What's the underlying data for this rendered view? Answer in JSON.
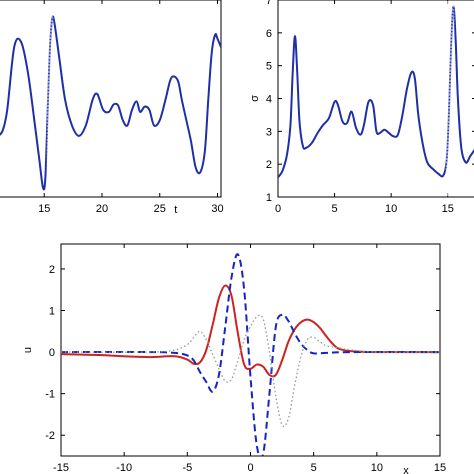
{
  "chart_data": [
    {
      "type": "line",
      "xlabel": "t",
      "ylabel": "",
      "xlim": [
        11,
        30.3
      ],
      "xticks": [
        15,
        20,
        25,
        30
      ],
      "color": "#1f2fa8",
      "series": [
        {
          "x": [
            11.0,
            11.4,
            11.8,
            12.4,
            13.0,
            13.6,
            14.2,
            14.6,
            14.9,
            15.1,
            15.3,
            15.5,
            15.7,
            15.9,
            16.3,
            16.8,
            17.4,
            18.0,
            18.6,
            19.2,
            19.6,
            20.1,
            20.6,
            21.0,
            21.4,
            21.8,
            22.2,
            22.6,
            23.0,
            23.3,
            23.7,
            24.1,
            24.5,
            25.0,
            25.5,
            25.9,
            26.2,
            26.6,
            26.9,
            27.3,
            27.7,
            28.1,
            28.5,
            28.9,
            29.2,
            29.5,
            29.8,
            30.0,
            30.3
          ],
          "y": [
            0.45,
            0.5,
            0.7,
            1.3,
            1.35,
            1.05,
            0.55,
            0.2,
            -0.05,
            0.05,
            0.7,
            1.3,
            1.58,
            1.52,
            1.2,
            0.8,
            0.55,
            0.45,
            0.55,
            0.8,
            0.85,
            0.7,
            0.68,
            0.75,
            0.74,
            0.6,
            0.55,
            0.7,
            0.78,
            0.68,
            0.73,
            0.7,
            0.55,
            0.6,
            0.8,
            0.98,
            1.02,
            0.97,
            0.8,
            0.6,
            0.4,
            0.15,
            0.1,
            0.3,
            0.8,
            1.25,
            1.42,
            1.38,
            1.3
          ],
          "dotted_range": [
            15.3,
            15.7
          ]
        }
      ]
    },
    {
      "type": "line",
      "xlabel": "",
      "ylabel": "σ",
      "xlim": [
        0,
        17.5
      ],
      "ylim": [
        1,
        7
      ],
      "xticks": [
        0,
        5,
        10,
        15
      ],
      "yticks": [
        1,
        2,
        3,
        4,
        5,
        6,
        7
      ],
      "color": "#1f2fa8",
      "series": [
        {
          "x": [
            0,
            0.4,
            0.8,
            1.1,
            1.3,
            1.5,
            1.7,
            1.9,
            2.2,
            2.5,
            3.0,
            3.5,
            4.0,
            4.5,
            5.0,
            5.3,
            5.7,
            6.1,
            6.5,
            6.9,
            7.3,
            7.6,
            8.0,
            8.4,
            8.7,
            9.0,
            9.4,
            9.8,
            10.2,
            10.6,
            11.0,
            11.4,
            11.8,
            12.1,
            12.4,
            12.8,
            13.2,
            13.7,
            14.2,
            14.6,
            14.9,
            15.1,
            15.3,
            15.5,
            15.7,
            15.9,
            16.2,
            16.6,
            17.0,
            17.5
          ],
          "y": [
            1.6,
            1.8,
            2.3,
            3.2,
            4.8,
            5.9,
            4.8,
            3.3,
            2.55,
            2.5,
            2.65,
            2.95,
            3.2,
            3.4,
            3.9,
            3.8,
            3.3,
            3.25,
            3.6,
            3.1,
            2.9,
            3.2,
            3.9,
            3.8,
            3.0,
            2.95,
            3.05,
            2.95,
            2.85,
            2.9,
            3.5,
            4.3,
            4.8,
            4.6,
            3.5,
            2.6,
            2.05,
            1.85,
            1.7,
            1.65,
            2.1,
            3.5,
            5.6,
            6.8,
            5.8,
            4.0,
            2.5,
            2.05,
            2.25,
            2.5
          ],
          "dotted_range": [
            14.9,
            15.5
          ]
        }
      ]
    },
    {
      "type": "line",
      "xlabel": "x",
      "ylabel": "u",
      "xlim": [
        -15,
        15
      ],
      "ylim": [
        -2.5,
        2.6
      ],
      "xticks": [
        -15,
        -10,
        -5,
        0,
        5,
        10,
        15
      ],
      "yticks": [
        -2,
        -1,
        0,
        1,
        2
      ],
      "series": [
        {
          "style": "solid",
          "color": "#cc2222",
          "x": [
            -15,
            -12,
            -10,
            -8,
            -6,
            -5,
            -4.5,
            -4,
            -3.5,
            -3,
            -2.5,
            -2,
            -1.5,
            -1,
            -0.5,
            0,
            0.5,
            1,
            1.5,
            2,
            2.5,
            3,
            3.5,
            4,
            4.5,
            5,
            5.5,
            6,
            6.5,
            7,
            8,
            10,
            15
          ],
          "y": [
            -0.05,
            -0.07,
            -0.1,
            -0.12,
            -0.1,
            -0.18,
            -0.28,
            -0.25,
            0.05,
            0.65,
            1.3,
            1.6,
            1.35,
            0.45,
            -0.3,
            -0.4,
            -0.3,
            -0.35,
            -0.55,
            -0.55,
            -0.2,
            0.25,
            0.55,
            0.72,
            0.78,
            0.72,
            0.58,
            0.38,
            0.2,
            0.08,
            0.02,
            0.0,
            0.0
          ]
        },
        {
          "style": "dashed",
          "color": "#1525c0",
          "x": [
            -15,
            -8,
            -6,
            -5,
            -4.5,
            -4,
            -3.5,
            -3,
            -2.5,
            -2,
            -1.5,
            -1,
            -0.5,
            0,
            0.5,
            1,
            1.5,
            2,
            2.5,
            3,
            3.5,
            4,
            4.5,
            5,
            6,
            8,
            15
          ],
          "y": [
            0.0,
            0.0,
            -0.02,
            -0.08,
            -0.2,
            -0.48,
            -0.72,
            -0.95,
            -0.55,
            0.6,
            1.8,
            2.35,
            1.5,
            -0.6,
            -2.25,
            -2.45,
            -1.0,
            0.6,
            0.9,
            0.75,
            0.45,
            0.2,
            0.05,
            -0.03,
            -0.02,
            0.0,
            0.0
          ]
        },
        {
          "style": "dotted",
          "color": "#8aa08a",
          "x": [
            -15,
            -8,
            -6,
            -5,
            -4.5,
            -4,
            -3.5,
            -3,
            -2.5,
            -2,
            -1.5,
            -1,
            -0.5,
            0,
            0.5,
            1,
            1.5,
            2,
            2.5,
            3,
            3.5,
            4,
            4.5,
            5,
            5.5,
            6,
            7,
            8,
            10,
            15
          ],
          "y": [
            0.0,
            0.0,
            0.05,
            0.18,
            0.35,
            0.5,
            0.3,
            -0.05,
            -0.4,
            -0.7,
            -0.65,
            -0.2,
            0.3,
            0.62,
            0.85,
            0.8,
            0.0,
            -1.05,
            -1.75,
            -1.6,
            -0.8,
            -0.1,
            0.3,
            0.35,
            0.25,
            0.15,
            0.1,
            0.05,
            0.0,
            0.0
          ]
        }
      ]
    }
  ]
}
